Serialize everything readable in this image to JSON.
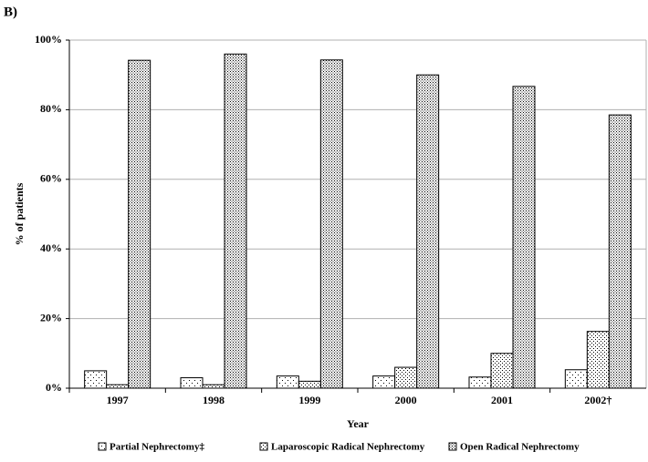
{
  "chart_data": {
    "type": "bar",
    "panel_label": "B)",
    "x_label": "Year",
    "y_label": "% of patients",
    "categories": [
      "1997",
      "1998",
      "1999",
      "2000",
      "2001",
      "2002†"
    ],
    "series": [
      {
        "name": "Partial Nephrectomy‡",
        "color": "#000000",
        "values": [
          5,
          3,
          3.5,
          3.5,
          3.2,
          5.3
        ]
      },
      {
        "name": "Laparoscopic Radical Nephrectomy",
        "color": "#000000",
        "values": [
          1,
          1,
          2,
          6,
          10,
          16.3
        ]
      },
      {
        "name": "Open Radical Nephrectomy",
        "color": "#000000",
        "values": [
          94.2,
          96,
          94.3,
          90,
          86.7,
          78.5
        ]
      }
    ],
    "ylim": [
      0,
      100
    ],
    "yticks": [
      {
        "value": 0,
        "label": "0%"
      },
      {
        "value": 20,
        "label": "20%"
      },
      {
        "value": 40,
        "label": "40%"
      },
      {
        "value": 60,
        "label": "60%"
      },
      {
        "value": 80,
        "label": "80%"
      },
      {
        "value": 100,
        "label": "100%"
      }
    ],
    "grid": true,
    "legend": "bottom"
  }
}
